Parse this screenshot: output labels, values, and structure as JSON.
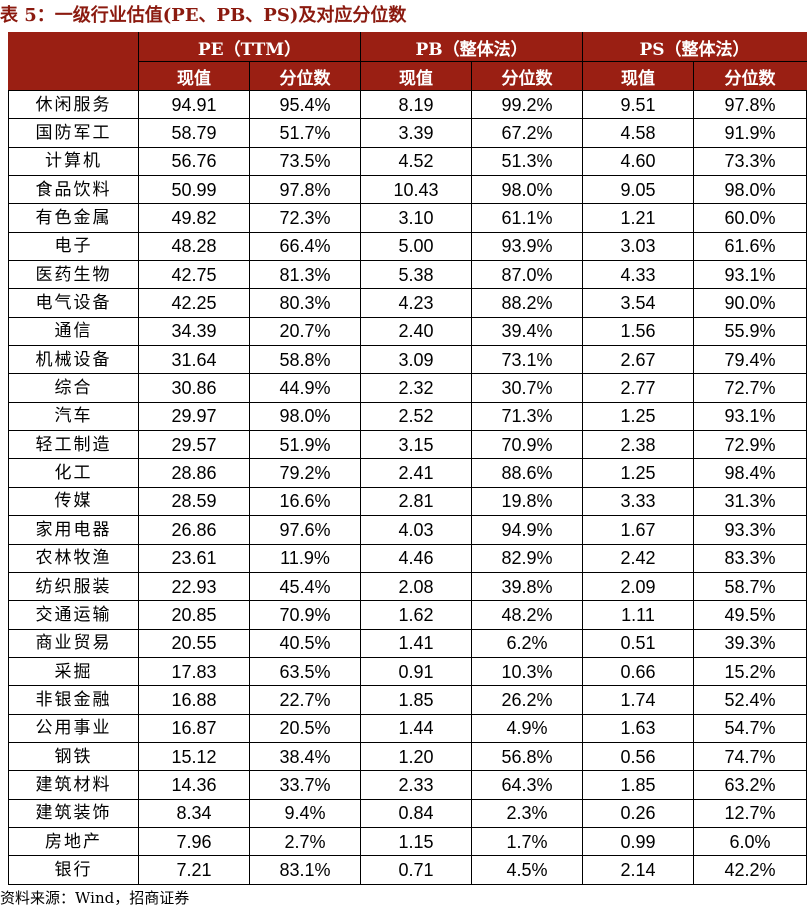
{
  "title": "表 5：一级行业估值(PE、PB、PS)及对应分位数",
  "header": {
    "groups": [
      "PE（TTM）",
      "PB（整体法）",
      "PS（整体法）"
    ],
    "sub": [
      "现值",
      "分位数",
      "现值",
      "分位数",
      "现值",
      "分位数"
    ]
  },
  "rows": [
    [
      "休闲服务",
      "94.91",
      "95.4%",
      "8.19",
      "99.2%",
      "9.51",
      "97.8%"
    ],
    [
      "国防军工",
      "58.79",
      "51.7%",
      "3.39",
      "67.2%",
      "4.58",
      "91.9%"
    ],
    [
      "计算机",
      "56.76",
      "73.5%",
      "4.52",
      "51.3%",
      "4.60",
      "73.3%"
    ],
    [
      "食品饮料",
      "50.99",
      "97.8%",
      "10.43",
      "98.0%",
      "9.05",
      "98.0%"
    ],
    [
      "有色金属",
      "49.82",
      "72.3%",
      "3.10",
      "61.1%",
      "1.21",
      "60.0%"
    ],
    [
      "电子",
      "48.28",
      "66.4%",
      "5.00",
      "93.9%",
      "3.03",
      "61.6%"
    ],
    [
      "医药生物",
      "42.75",
      "81.3%",
      "5.38",
      "87.0%",
      "4.33",
      "93.1%"
    ],
    [
      "电气设备",
      "42.25",
      "80.3%",
      "4.23",
      "88.2%",
      "3.54",
      "90.0%"
    ],
    [
      "通信",
      "34.39",
      "20.7%",
      "2.40",
      "39.4%",
      "1.56",
      "55.9%"
    ],
    [
      "机械设备",
      "31.64",
      "58.8%",
      "3.09",
      "73.1%",
      "2.67",
      "79.4%"
    ],
    [
      "综合",
      "30.86",
      "44.9%",
      "2.32",
      "30.7%",
      "2.77",
      "72.7%"
    ],
    [
      "汽车",
      "29.97",
      "98.0%",
      "2.52",
      "71.3%",
      "1.25",
      "93.1%"
    ],
    [
      "轻工制造",
      "29.57",
      "51.9%",
      "3.15",
      "70.9%",
      "2.38",
      "72.9%"
    ],
    [
      "化工",
      "28.86",
      "79.2%",
      "2.41",
      "88.6%",
      "1.25",
      "98.4%"
    ],
    [
      "传媒",
      "28.59",
      "16.6%",
      "2.81",
      "19.8%",
      "3.33",
      "31.3%"
    ],
    [
      "家用电器",
      "26.86",
      "97.6%",
      "4.03",
      "94.9%",
      "1.67",
      "93.3%"
    ],
    [
      "农林牧渔",
      "23.61",
      "11.9%",
      "4.46",
      "82.9%",
      "2.42",
      "83.3%"
    ],
    [
      "纺织服装",
      "22.93",
      "45.4%",
      "2.08",
      "39.8%",
      "2.09",
      "58.7%"
    ],
    [
      "交通运输",
      "20.85",
      "70.9%",
      "1.62",
      "48.2%",
      "1.11",
      "49.5%"
    ],
    [
      "商业贸易",
      "20.55",
      "40.5%",
      "1.41",
      "6.2%",
      "0.51",
      "39.3%"
    ],
    [
      "采掘",
      "17.83",
      "63.5%",
      "0.91",
      "10.3%",
      "0.66",
      "15.2%"
    ],
    [
      "非银金融",
      "16.88",
      "22.7%",
      "1.85",
      "26.2%",
      "1.74",
      "52.4%"
    ],
    [
      "公用事业",
      "16.87",
      "20.5%",
      "1.44",
      "4.9%",
      "1.63",
      "54.7%"
    ],
    [
      "钢铁",
      "15.12",
      "38.4%",
      "1.20",
      "56.8%",
      "0.56",
      "74.7%"
    ],
    [
      "建筑材料",
      "14.36",
      "33.7%",
      "2.33",
      "64.3%",
      "1.85",
      "63.2%"
    ],
    [
      "建筑装饰",
      "8.34",
      "9.4%",
      "0.84",
      "2.3%",
      "0.26",
      "12.7%"
    ],
    [
      "房地产",
      "7.96",
      "2.7%",
      "1.15",
      "1.7%",
      "0.99",
      "6.0%"
    ],
    [
      "银行",
      "7.21",
      "83.1%",
      "0.71",
      "4.5%",
      "2.14",
      "42.2%"
    ]
  ],
  "source": "资料来源：Wind，招商证券"
}
